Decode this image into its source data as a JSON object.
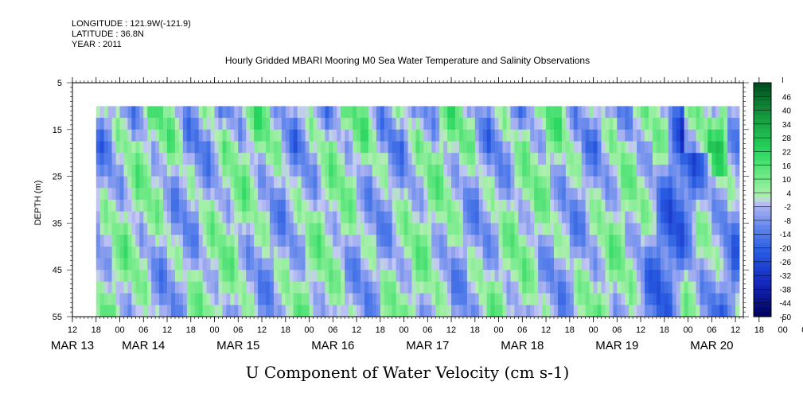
{
  "header": {
    "longitude": "LONGITUDE : 121.9W(-121.9)",
    "latitude": "LATITUDE : 36.8N",
    "year": "YEAR : 2011"
  },
  "chart_data": {
    "type": "heatmap",
    "title": "Hourly Gridded MBARI Mooring M0 Sea Water Temperature and Salinity Observations",
    "xlabel": "U Component of Water Velocity (cm s-1)",
    "ylabel": "DEPTH (m)",
    "y_ticks": [
      "5",
      "15",
      "25",
      "35",
      "45",
      "55"
    ],
    "ylim": [
      5,
      55
    ],
    "y_reversed": true,
    "x_hour_ticks": [
      "12",
      "18",
      "00",
      "06",
      "12",
      "18",
      "00",
      "06",
      "12",
      "18",
      "00",
      "06",
      "12",
      "18",
      "00",
      "06",
      "12",
      "18",
      "00",
      "06",
      "12",
      "18",
      "00",
      "06",
      "12",
      "18",
      "00",
      "06",
      "12",
      "18",
      "00",
      "06",
      "12"
    ],
    "x_date_labels": [
      "MAR 13",
      "MAR 14",
      "MAR 15",
      "MAR 16",
      "MAR 17",
      "MAR 18",
      "MAR 19",
      "MAR 20"
    ],
    "x_range_hours": [
      "MAR 13 12",
      "MAR 20 14"
    ],
    "data_start": "MAR 13 18",
    "data_end": "MAR 20 13",
    "data_depth_range": [
      10,
      55
    ],
    "colorbar_labels": [
      "46",
      "40",
      "34",
      "28",
      "22",
      "16",
      "10",
      "4",
      "-2",
      "-8",
      "-14",
      "-20",
      "-26",
      "-32",
      "-38",
      "-44",
      "-50"
    ],
    "colorbar_range": [
      -50,
      52
    ],
    "colors": {
      "deep_negative": "#00005a",
      "negative": "#2a54dc",
      "near_zero_negative": "#a8b0f0",
      "near_zero_positive": "#a8f0a8",
      "positive": "#2ad660",
      "deep_positive": "#004a1e"
    }
  }
}
